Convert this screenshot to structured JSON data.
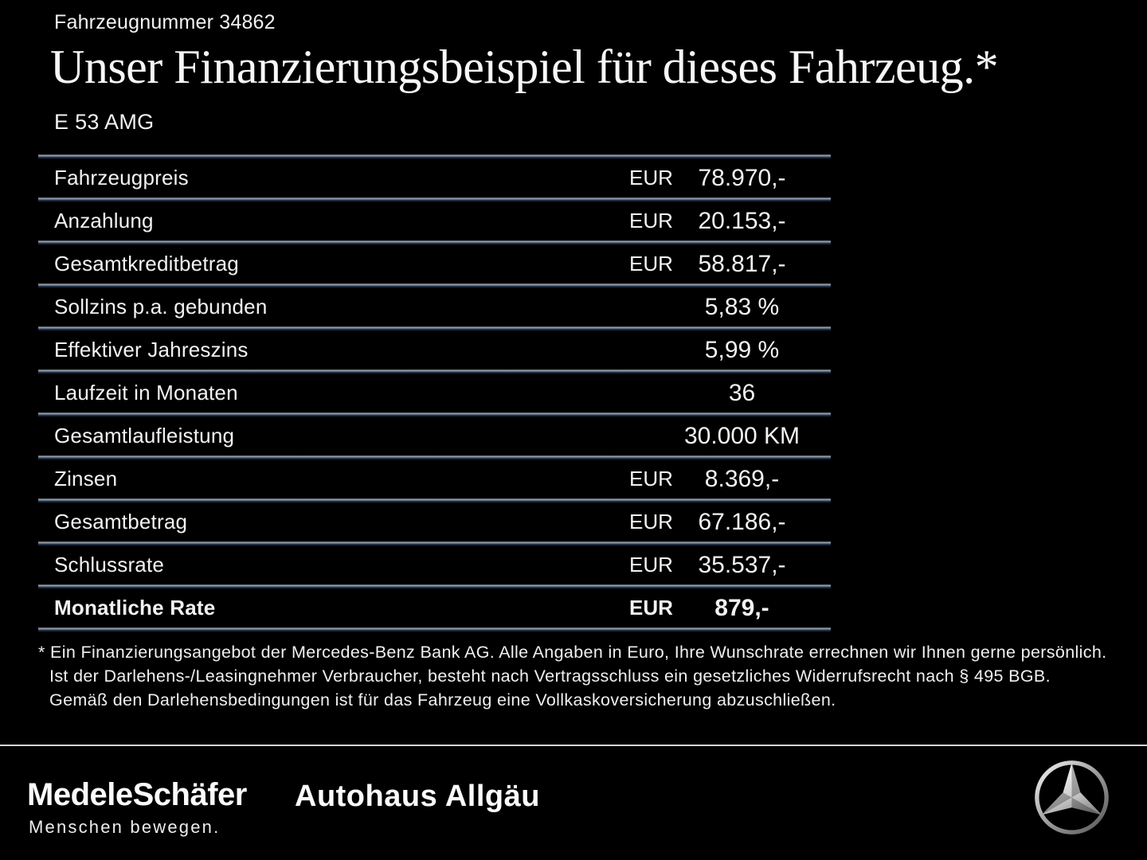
{
  "header": {
    "vehicle_number": "Fahrzeugnummer 34862",
    "title": "Unser Finanzierungsbeispiel für dieses Fahrzeug.*",
    "model": "E 53 AMG"
  },
  "table": {
    "rows": [
      {
        "label": "Fahrzeugpreis",
        "currency": "EUR",
        "value": "78.970,-",
        "bold": false
      },
      {
        "label": "Anzahlung",
        "currency": "EUR",
        "value": "20.153,-",
        "bold": false
      },
      {
        "label": "Gesamtkreditbetrag",
        "currency": "EUR",
        "value": "58.817,-",
        "bold": false
      },
      {
        "label": "Sollzins p.a. gebunden",
        "currency": "",
        "value": "5,83 %",
        "bold": false
      },
      {
        "label": "Effektiver Jahreszins",
        "currency": "",
        "value": "5,99 %",
        "bold": false
      },
      {
        "label": "Laufzeit in Monaten",
        "currency": "",
        "value": "36",
        "bold": false
      },
      {
        "label": "Gesamtlaufleistung",
        "currency": "",
        "value": "30.000 KM",
        "bold": false
      },
      {
        "label": "Zinsen",
        "currency": "EUR",
        "value": "8.369,-",
        "bold": false
      },
      {
        "label": "Gesamtbetrag",
        "currency": "EUR",
        "value": "67.186,-",
        "bold": false
      },
      {
        "label": "Schlussrate",
        "currency": "EUR",
        "value": "35.537,-",
        "bold": false
      },
      {
        "label": "Monatliche Rate",
        "currency": "EUR",
        "value": "879,-",
        "bold": true
      }
    ]
  },
  "disclaimer": {
    "text": "* Ein Finanzierungsangebot der Mercedes-Benz Bank AG. Alle Angaben in Euro, Ihre Wunschrate errechnen wir Ihnen gerne persönlich. Ist der Darlehens-/Leasingnehmer Verbraucher, besteht nach Vertragsschluss ein gesetzliches Widerrufsrecht nach § 495 BGB. Gemäß den Darlehensbedingungen ist für das Fahrzeug eine Vollkaskoversicherung abzuschließen."
  },
  "footer": {
    "dealer_name": "MedeleSchäfer",
    "dealer_tagline": "Menschen bewegen.",
    "dealer_secondary": "Autohaus Allgäu",
    "brand_icon": "mercedes-star-icon"
  },
  "colors": {
    "background": "#000000",
    "text": "#f2f2f2",
    "separator_gray": "#9aa1a9",
    "separator_navy": "#16233b",
    "footer_divider": "#d4d4d4"
  }
}
